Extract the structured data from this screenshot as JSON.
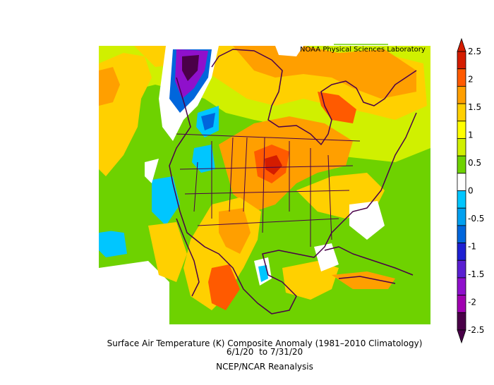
{
  "attribution": "NOAA Physical Sciences Laboratory",
  "caption": {
    "line1": "Surface Air Temperature (K) Composite Anomaly (1981–2010 Climatology)",
    "line2": "6/1/20  to 7/31/20",
    "line3": "NCEP/NCAR Reanalysis"
  },
  "colorbar": {
    "ticks": [
      "2.5",
      "2",
      "1.5",
      "1",
      "0.5",
      "0",
      "-0.5",
      "-1",
      "-1.5",
      "-2",
      "-2.5"
    ],
    "colors": [
      "#d41c00",
      "#ff5a00",
      "#ff9f00",
      "#ffd000",
      "#ffff00",
      "#d0f000",
      "#6ed200",
      "#ffffff",
      "#00c6ff",
      "#00a0f0",
      "#0066dc",
      "#1e20d2",
      "#5a1fd2",
      "#8f10cc",
      "#a000b0",
      "#4a0048"
    ]
  }
}
